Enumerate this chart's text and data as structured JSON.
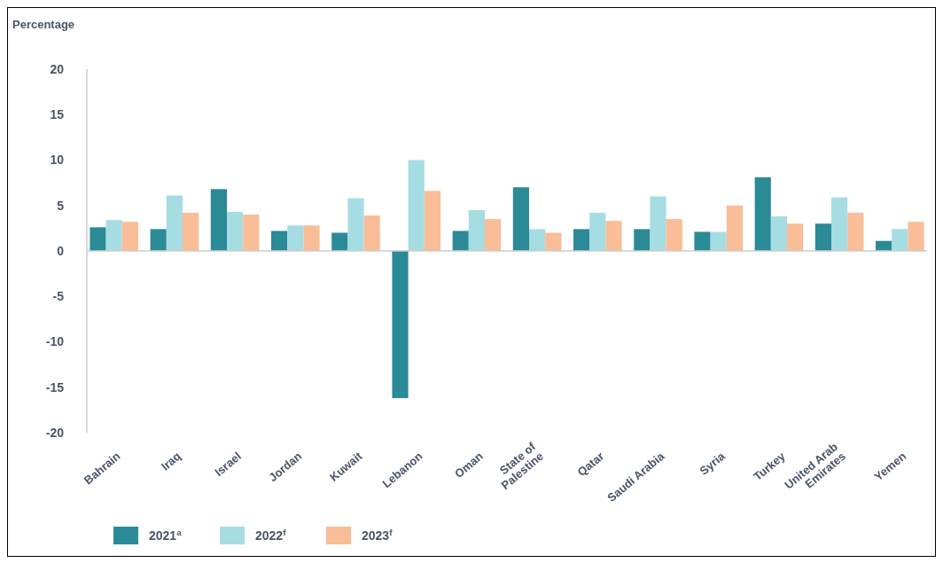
{
  "chart_data": {
    "type": "bar",
    "ylabel": "Percentage",
    "categories": [
      "Bahrain",
      "Iraq",
      "Israel",
      "Jordan",
      "Kuwait",
      "Lebanon",
      "Oman",
      "State of\nPalestine",
      "Qatar",
      "Saudi Arabia",
      "Syria",
      "Turkey",
      "United Arab\nEmirates",
      "Yemen"
    ],
    "series": [
      {
        "name": "2021$^{a}$",
        "color": "#2a8a96",
        "values": [
          2.6,
          2.4,
          6.8,
          2.2,
          2.0,
          -16.2,
          2.2,
          7.0,
          2.4,
          2.4,
          2.1,
          8.1,
          3.0,
          1.1
        ]
      },
      {
        "name": "2022$^{f}$",
        "color": "#a6dde2",
        "values": [
          3.4,
          6.1,
          4.3,
          2.8,
          5.8,
          10.0,
          4.5,
          2.4,
          4.2,
          6.0,
          2.1,
          3.8,
          5.9,
          2.4
        ]
      },
      {
        "name": "2023$^{f}$",
        "color": "#f9bd97",
        "values": [
          3.2,
          4.2,
          4.0,
          2.8,
          3.9,
          6.6,
          3.5,
          2.0,
          3.3,
          3.5,
          5.0,
          3.0,
          4.2,
          3.2
        ]
      }
    ],
    "ylim": [
      -20,
      20
    ],
    "yticks": [
      -20,
      -15,
      -10,
      -5,
      0,
      5,
      10,
      15,
      20
    ],
    "legend": "bottom left"
  }
}
